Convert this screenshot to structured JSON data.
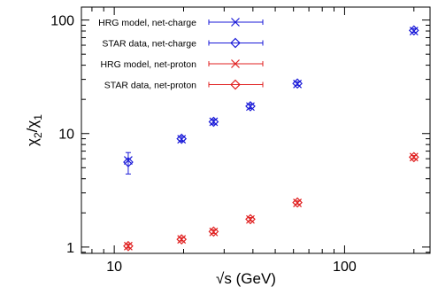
{
  "chart_data": {
    "type": "scatter",
    "title": "",
    "xlabel": "√s (GeV)",
    "ylabel_parts": [
      "χ",
      "2",
      "/χ",
      "1"
    ],
    "x_scale": "log",
    "y_scale": "log",
    "xlim": [
      7.2,
      235
    ],
    "ylim": [
      0.88,
      130
    ],
    "x_ticks": [
      {
        "value": 10,
        "label": "10"
      },
      {
        "value": 100,
        "label": "100"
      }
    ],
    "y_ticks": [
      {
        "value": 1,
        "label": "1"
      },
      {
        "value": 10,
        "label": "10"
      },
      {
        "value": 100,
        "label": "100"
      }
    ],
    "grid": false,
    "legend_position": "top-left",
    "series": [
      {
        "name": "HRG model, net-charge",
        "marker": "x",
        "color": "#1a1ad8",
        "x": [
          11.5,
          19.6,
          27,
          39,
          62.4,
          200
        ],
        "y": [
          5.8,
          8.9,
          12.7,
          17.3,
          27.3,
          80
        ]
      },
      {
        "name": "STAR data, net-charge",
        "marker": "diamond",
        "color": "#1a1ad8",
        "x": [
          11.5,
          19.6,
          27,
          39,
          62.4,
          200
        ],
        "y": [
          5.6,
          9.0,
          12.7,
          17.4,
          27.6,
          81
        ],
        "yerr": [
          1.2,
          0.45,
          0.6,
          0.8,
          1.0,
          3.0
        ]
      },
      {
        "name": "HRG model, net-proton",
        "marker": "x",
        "color": "#e02020",
        "x": [
          11.5,
          19.6,
          27,
          39,
          62.4,
          200
        ],
        "y": [
          1.02,
          1.17,
          1.36,
          1.75,
          2.45,
          6.2
        ]
      },
      {
        "name": "STAR data, net-proton",
        "marker": "diamond",
        "color": "#e02020",
        "x": [
          11.5,
          19.6,
          27,
          39,
          62.4,
          200
        ],
        "y": [
          1.02,
          1.17,
          1.37,
          1.76,
          2.47,
          6.2
        ],
        "yerr": [
          0.04,
          0.04,
          0.05,
          0.06,
          0.08,
          0.2
        ]
      }
    ]
  }
}
